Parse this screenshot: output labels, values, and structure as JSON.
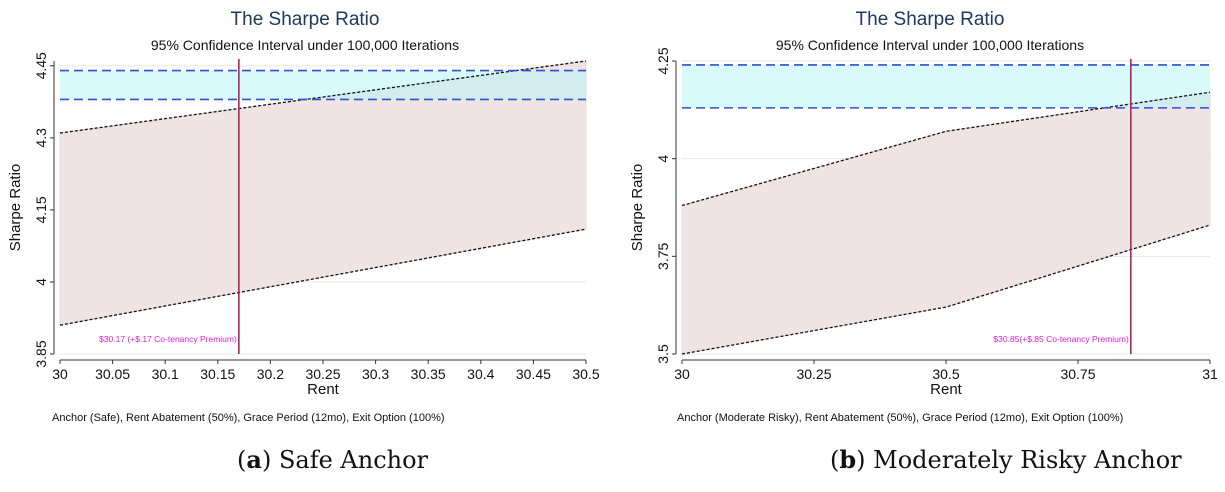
{
  "captions": [
    {
      "tag": "a",
      "text": "Safe Anchor"
    },
    {
      "tag": "b",
      "text": "Moderately Risky Anchor"
    }
  ],
  "chart_data": [
    {
      "type": "area",
      "title": "The Sharpe Ratio",
      "subtitle": "95% Confidence Interval under 100,000 Iterations",
      "xlabel": "Rent",
      "ylabel": "Sharpe Ratio",
      "note": "Anchor (Safe), Rent Abatement (50%), Grace Period (12mo), Exit Option (100%)",
      "xlim": [
        30,
        30.5
      ],
      "ylim": [
        3.85,
        4.46
      ],
      "xticks": [
        "30",
        "30.05",
        "30.1",
        "30.15",
        "30.2",
        "30.25",
        "30.3",
        "30.35",
        "30.4",
        "30.45",
        "30.5"
      ],
      "yticks": [
        "3.85",
        "4",
        "4.15",
        "4.3",
        "4.45"
      ],
      "grid": true,
      "band": {
        "x": [
          30,
          30.5
        ],
        "lower": [
          3.91,
          4.11
        ],
        "upper": [
          4.31,
          4.46
        ]
      },
      "reference_band": {
        "lower": 4.38,
        "upper": 4.44
      },
      "marker": {
        "x": 30.17,
        "label": "$30.17 (+$.17 Co-tenancy Premium)"
      },
      "colors": {
        "title": "#1f3864",
        "band": "#eedfe0",
        "reference_band": "#b9f5f5",
        "dashed": "#2f4fd6",
        "marker": "#b0245a",
        "marker_label": "#e020d0"
      }
    },
    {
      "type": "area",
      "title": "The Sharpe Ratio",
      "subtitle": "95% Confidence Interval under 100,000 Iterations",
      "xlabel": "Rent",
      "ylabel": "Sharpe Ratio",
      "note": "Anchor (Moderate Risky), Rent Abatement (50%), Grace Period (12mo), Exit Option (100%)",
      "xlim": [
        30,
        31
      ],
      "ylim": [
        3.5,
        4.25
      ],
      "xticks": [
        "30",
        "30.25",
        "30.5",
        "30.75",
        "31"
      ],
      "yticks": [
        "3.5",
        "3.75",
        "4",
        "4.25"
      ],
      "grid": true,
      "band": {
        "x": [
          30,
          30.5,
          31
        ],
        "lower": [
          3.5,
          3.62,
          3.83
        ],
        "upper": [
          3.88,
          4.07,
          4.17
        ]
      },
      "reference_band": {
        "lower": 4.13,
        "upper": 4.24
      },
      "marker": {
        "x": 30.85,
        "label": "$30.85(+$.85 Co-tenancy Premium)"
      },
      "colors": {
        "title": "#1f3864",
        "band": "#eedfe0",
        "reference_band": "#b9f5f5",
        "dashed": "#2f4fd6",
        "marker": "#b0245a",
        "marker_label": "#e020d0"
      }
    }
  ]
}
